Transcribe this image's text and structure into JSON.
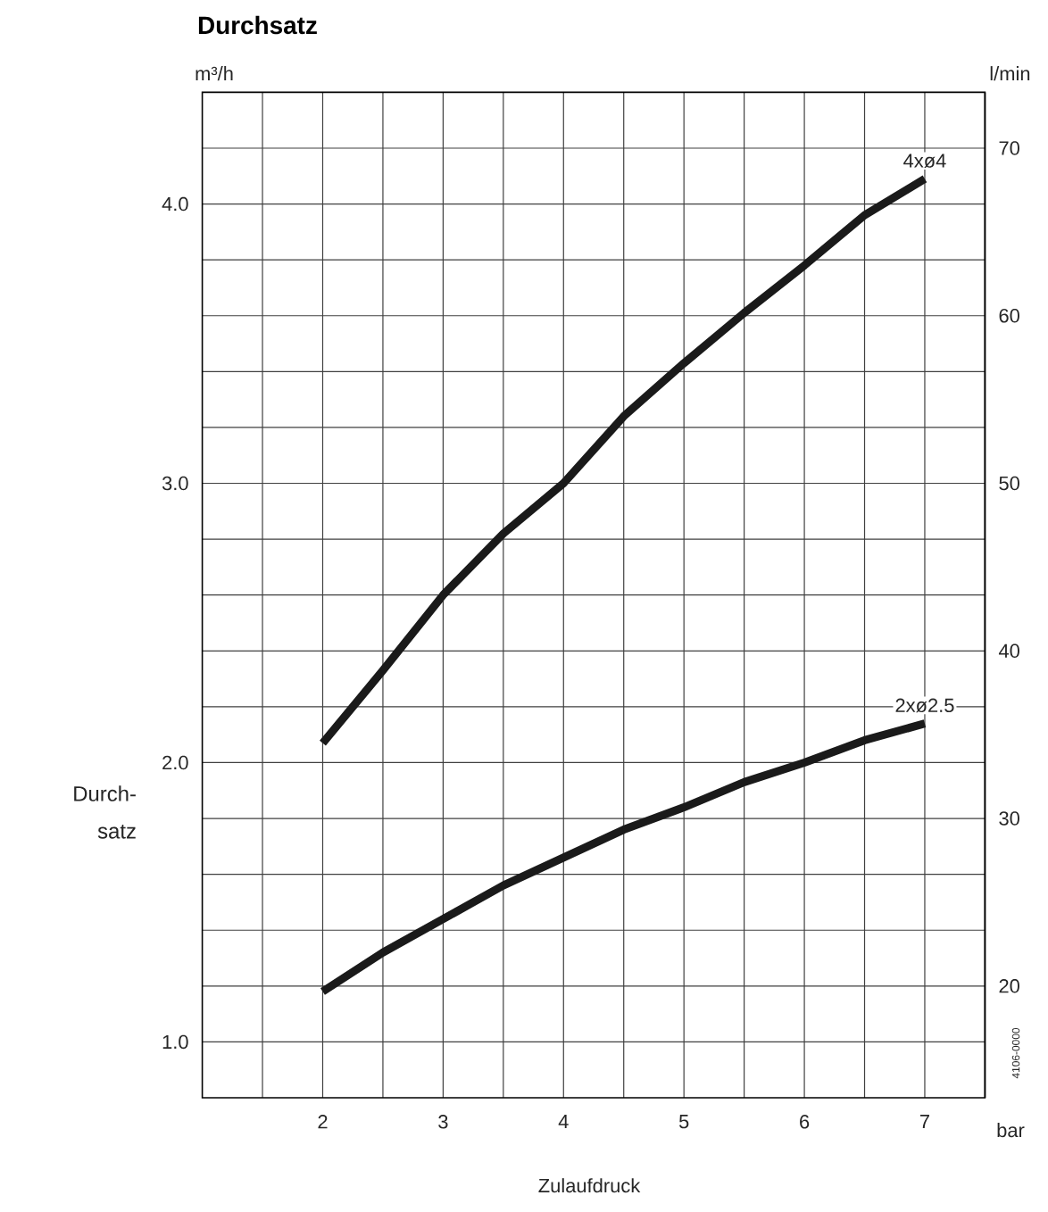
{
  "chart_data": {
    "type": "line",
    "title": "Durchsatz",
    "xlabel": "Zulaufdruck",
    "ylabel": "Durch- satz",
    "y2label": "l/min",
    "annotations": [
      "m³/h",
      "bar",
      "4106-0000"
    ],
    "xlim": [
      1,
      7.5
    ],
    "ylim": [
      0.8,
      4.4
    ],
    "y2lim": [
      13.333,
      73.333
    ],
    "xticks": [
      {
        "value": 1.5,
        "label": null
      },
      2,
      {
        "value": 2.5,
        "label": null
      },
      3,
      {
        "value": 3.5,
        "label": null
      },
      4,
      {
        "value": 4.5,
        "label": null
      },
      5,
      {
        "value": 5.5,
        "label": null
      },
      6,
      {
        "value": 6.5,
        "label": null
      },
      7
    ],
    "yticks": [
      {
        "value": 1.0,
        "label": "1.0"
      },
      {
        "value": 1.2,
        "label": null
      },
      {
        "value": 1.4,
        "label": null
      },
      {
        "value": 1.6,
        "label": null
      },
      {
        "value": 1.8,
        "label": null
      },
      {
        "value": 2.0,
        "label": "2.0"
      },
      {
        "value": 2.2,
        "label": null
      },
      {
        "value": 2.4,
        "label": null
      },
      {
        "value": 2.6,
        "label": null
      },
      {
        "value": 2.8,
        "label": null
      },
      {
        "value": 3.0,
        "label": "3.0"
      },
      {
        "value": 3.2,
        "label": null
      },
      {
        "value": 3.4,
        "label": null
      },
      {
        "value": 3.6,
        "label": null
      },
      {
        "value": 3.8,
        "label": null
      },
      {
        "value": 4.0,
        "label": "4.0"
      },
      {
        "value": 4.2,
        "label": null
      }
    ],
    "y2ticks": [
      20,
      30,
      40,
      50,
      60,
      70
    ],
    "grid": true,
    "x": [
      2,
      2.5,
      3,
      3.5,
      4,
      4.5,
      5,
      5.5,
      6,
      6.5,
      7
    ],
    "series": [
      {
        "name": "4xø4",
        "color": "#1a1a1a",
        "values": [
          2.07,
          2.33,
          2.6,
          2.82,
          3.0,
          3.24,
          3.43,
          3.61,
          3.78,
          3.96,
          4.09
        ]
      },
      {
        "name": "2xø2.5",
        "color": "#1a1a1a",
        "values": [
          1.18,
          1.32,
          1.44,
          1.56,
          1.66,
          1.76,
          1.84,
          1.93,
          2.0,
          2.08,
          2.14
        ]
      }
    ]
  }
}
